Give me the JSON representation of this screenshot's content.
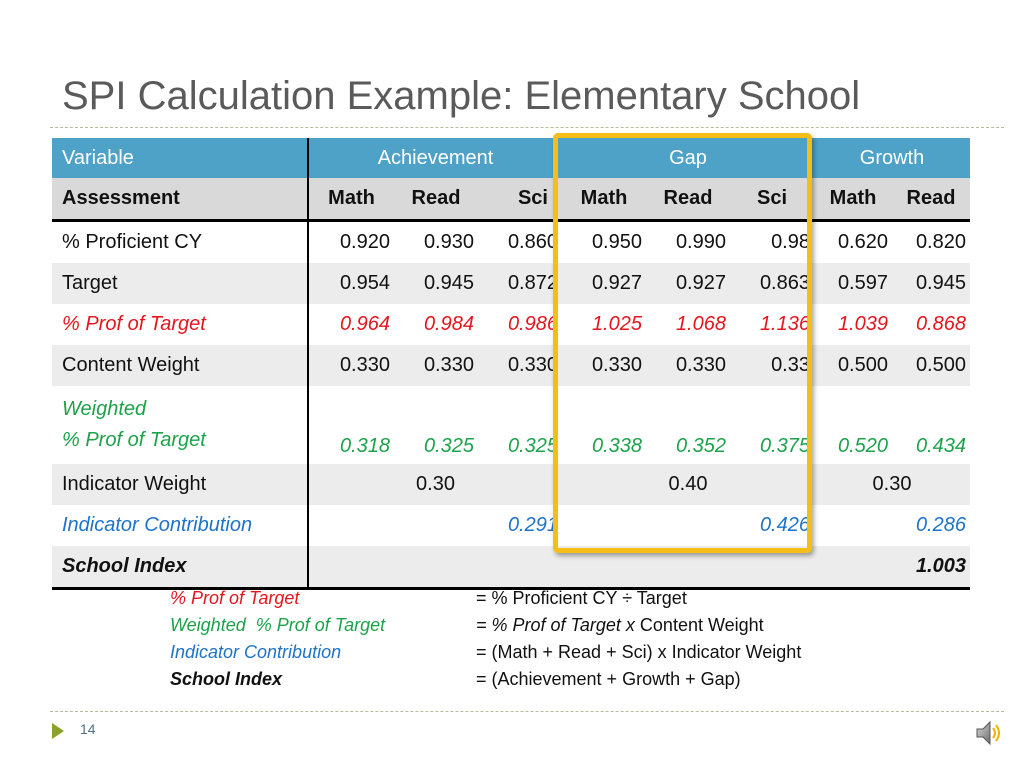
{
  "slide": {
    "title": "SPI Calculation Example: Elementary School",
    "page_number": "14"
  },
  "table": {
    "groups": {
      "variable": "Variable",
      "achievement": "Achievement",
      "gap": "Gap",
      "growth": "Growth"
    },
    "subheaders": {
      "label": "Assessment",
      "cols": [
        "Math",
        "Read",
        "Sci",
        "Math",
        "Read",
        "Sci",
        "Math",
        "Read"
      ]
    },
    "rows": {
      "proficient": {
        "label": "% Proficient CY",
        "values": [
          "0.920",
          "0.930",
          "0.860",
          "0.950",
          "0.990",
          "0.98",
          "0.620",
          "0.820"
        ]
      },
      "target": {
        "label": "Target",
        "values": [
          "0.954",
          "0.945",
          "0.872",
          "0.927",
          "0.927",
          "0.863",
          "0.597",
          "0.945"
        ]
      },
      "prof_of_target": {
        "label": "% Prof of Target",
        "values": [
          "0.964",
          "0.984",
          "0.986",
          "1.025",
          "1.068",
          "1.136",
          "1.039",
          "0.868"
        ]
      },
      "content_weight": {
        "label": "Content Weight",
        "values": [
          "0.330",
          "0.330",
          "0.330",
          "0.330",
          "0.330",
          "0.33",
          "0.500",
          "0.500"
        ]
      },
      "weighted": {
        "label_line1": "Weighted",
        "label_line2": "% Prof of Target",
        "values": [
          "0.318",
          "0.325",
          "0.325",
          "0.338",
          "0.352",
          "0.375",
          "0.520",
          "0.434"
        ]
      },
      "indicator_weight": {
        "label": "Indicator Weight",
        "achievement": "0.30",
        "gap": "0.40",
        "growth": "0.30"
      },
      "indicator_contribution": {
        "label": "Indicator Contribution",
        "achievement": "0.291",
        "gap": "0.426",
        "growth": "0.286"
      },
      "school_index": {
        "label": "School Index",
        "value": "1.003"
      }
    }
  },
  "legend": [
    {
      "term": "% Prof of Target",
      "def_italic": "",
      "def": "= % Proficient CY ÷ Target"
    },
    {
      "term": "Weighted  % Prof of Target",
      "def_italic": "= % Prof of Target x",
      "def": " Content Weight"
    },
    {
      "term": "Indicator Contribution",
      "def_italic": "",
      "def": "= (Math + Read + Sci) x Indicator Weight"
    },
    {
      "term": "School Index",
      "def_italic": "",
      "def": "= (Achievement + Growth + Gap)"
    }
  ],
  "colors": {
    "header": "#4ea1c7",
    "highlight": "#f5be16",
    "red": "#e3161e",
    "green": "#1da24a",
    "blue": "#1e73c8"
  },
  "icons": {
    "footer": "triangle-arrow-icon",
    "audio": "speaker-icon"
  }
}
